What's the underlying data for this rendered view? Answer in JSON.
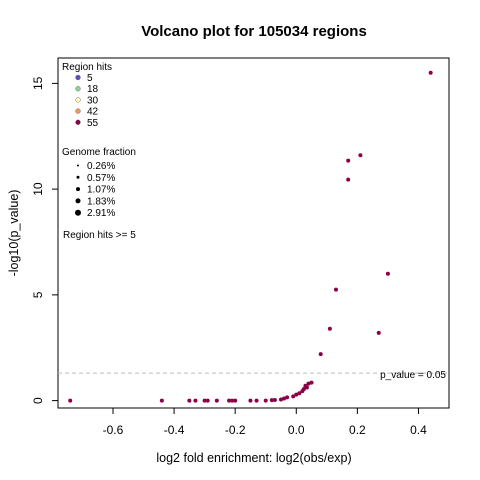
{
  "chart_data": {
    "type": "scatter",
    "title": "Volcano plot for 105034 regions",
    "xlabel": "log2 fold enrichment: log2(obs/exp)",
    "ylabel": "-log10(p_value)",
    "xlim": [
      -0.78,
      0.5
    ],
    "ylim": [
      -0.35,
      16.2
    ],
    "x_ticks": [
      -0.6,
      -0.4,
      -0.2,
      0.0,
      0.2,
      0.4
    ],
    "x_tick_labels": [
      "-0.6",
      "-0.4",
      "-0.2",
      "0.0",
      "0.2",
      "0.4"
    ],
    "y_ticks": [
      0,
      5,
      10,
      15
    ],
    "y_tick_labels": [
      "0",
      "5",
      "10",
      "15"
    ],
    "threshold": {
      "y": 1.301,
      "label": "p_value = 0.05",
      "color": "#bbbbbb"
    },
    "point_color": "#8b0046",
    "points": [
      {
        "x": -0.74,
        "y": 0.0
      },
      {
        "x": -0.44,
        "y": 0.0
      },
      {
        "x": -0.35,
        "y": 0.0
      },
      {
        "x": -0.33,
        "y": 0.0
      },
      {
        "x": -0.3,
        "y": 0.0
      },
      {
        "x": -0.29,
        "y": 0.0
      },
      {
        "x": -0.26,
        "y": 0.0
      },
      {
        "x": -0.22,
        "y": 0.0
      },
      {
        "x": -0.21,
        "y": 0.0
      },
      {
        "x": -0.2,
        "y": 0.0
      },
      {
        "x": -0.15,
        "y": 0.0
      },
      {
        "x": -0.13,
        "y": 0.0
      },
      {
        "x": -0.1,
        "y": 0.0
      },
      {
        "x": -0.08,
        "y": 0.02
      },
      {
        "x": -0.07,
        "y": 0.03
      },
      {
        "x": -0.05,
        "y": 0.05
      },
      {
        "x": -0.04,
        "y": 0.1
      },
      {
        "x": -0.03,
        "y": 0.15
      },
      {
        "x": -0.01,
        "y": 0.2
      },
      {
        "x": 0.0,
        "y": 0.28
      },
      {
        "x": 0.01,
        "y": 0.35
      },
      {
        "x": 0.02,
        "y": 0.45
      },
      {
        "x": 0.025,
        "y": 0.55
      },
      {
        "x": 0.03,
        "y": 0.7
      },
      {
        "x": 0.035,
        "y": 0.62
      },
      {
        "x": 0.04,
        "y": 0.8
      },
      {
        "x": 0.05,
        "y": 0.85
      },
      {
        "x": 0.08,
        "y": 2.2
      },
      {
        "x": 0.11,
        "y": 3.4
      },
      {
        "x": 0.13,
        "y": 5.25
      },
      {
        "x": 0.17,
        "y": 10.45
      },
      {
        "x": 0.17,
        "y": 11.35
      },
      {
        "x": 0.21,
        "y": 11.6
      },
      {
        "x": 0.27,
        "y": 3.2
      },
      {
        "x": 0.3,
        "y": 6.0
      },
      {
        "x": 0.44,
        "y": 15.5
      }
    ],
    "legend": {
      "placement": "top-left",
      "size_title": "Region hits",
      "size_items": [
        {
          "label": "5",
          "color": "#5a50b8"
        },
        {
          "label": "18",
          "color": "#8fd29a"
        },
        {
          "label": "30",
          "color": "#fdf8c0"
        },
        {
          "label": "42",
          "color": "#f4955a"
        },
        {
          "label": "55",
          "color": "#8b0046"
        }
      ],
      "fraction_title": "Genome fraction",
      "fraction_items": [
        "0.26%",
        "0.57%",
        "1.07%",
        "1.83%",
        "2.91%"
      ],
      "filter_note": "Region hits >= 5"
    }
  }
}
